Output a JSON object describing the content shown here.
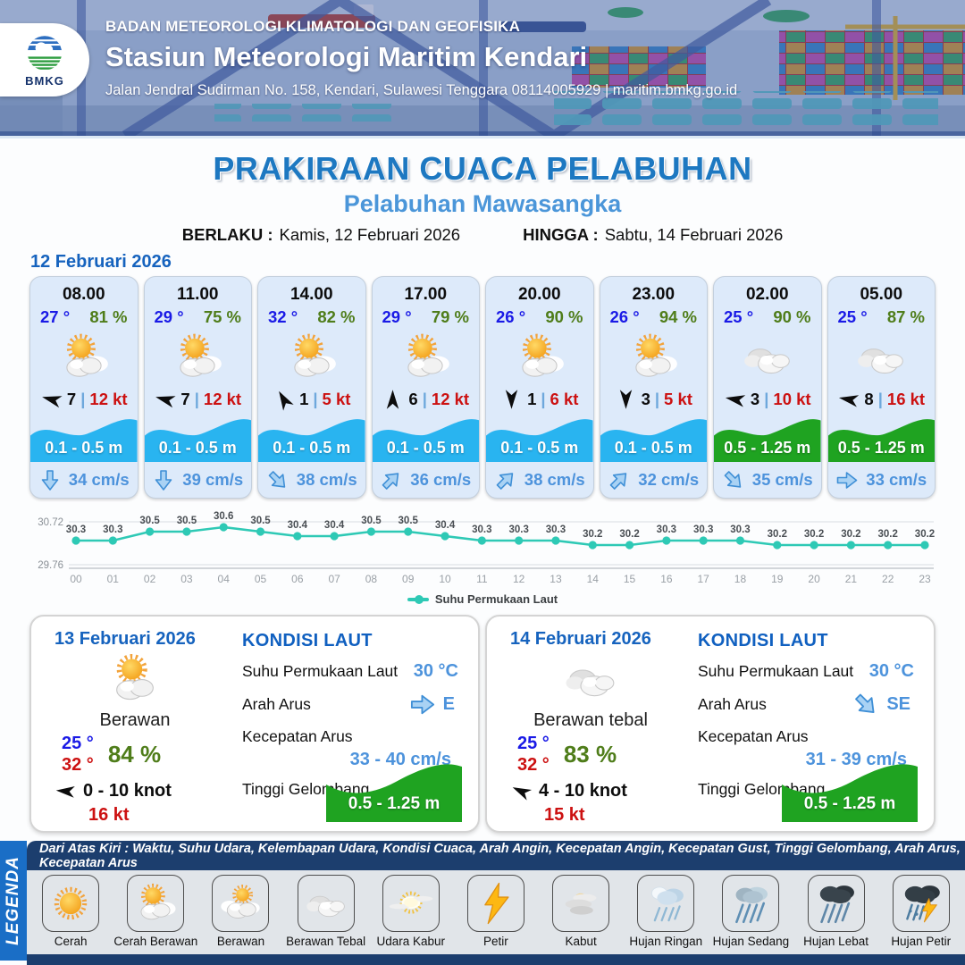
{
  "header": {
    "org": "BADAN METEOROLOGI KLIMATOLOGI DAN GEOFISIKA",
    "station": "Stasiun Meteorologi Maritim Kendari",
    "address": "Jalan Jendral Sudirman No. 158, Kendari, Sulawesi Tenggara  08114005929 | maritim.bmkg.go.id",
    "logo_text": "BMKG"
  },
  "title": {
    "main": "PRAKIRAAN CUACA PELABUHAN",
    "subtitle": "Pelabuhan Mawasangka",
    "berlaku_label": "BERLAKU :",
    "berlaku_value": "Kamis, 12 Februari 2026",
    "hingga_label": "HINGGA :",
    "hingga_value": "Sabtu, 14 Februari 2026"
  },
  "forecast_date": "12 Februari 2026",
  "misc": {
    "divider": "|"
  },
  "cards": [
    {
      "time": "08.00",
      "temp": "27 °",
      "humidity": "81 %",
      "icon": "cerah-berawan",
      "wind_speed": "7",
      "wind_gust": "12 kt",
      "wind_rot": 195,
      "wave": "0.1 - 0.5 m",
      "wave_color": "#29b4f0",
      "current": "34 cm/s",
      "current_rot": 90
    },
    {
      "time": "11.00",
      "temp": "29 °",
      "humidity": "75 %",
      "icon": "cerah-berawan",
      "wind_speed": "7",
      "wind_gust": "12 kt",
      "wind_rot": 195,
      "wave": "0.1 - 0.5 m",
      "wave_color": "#29b4f0",
      "current": "39 cm/s",
      "current_rot": 90
    },
    {
      "time": "14.00",
      "temp": "32 °",
      "humidity": "82 %",
      "icon": "cerah-berawan",
      "wind_speed": "1",
      "wind_gust": "5 kt",
      "wind_rot": 240,
      "wave": "0.1 - 0.5 m",
      "wave_color": "#29b4f0",
      "current": "38 cm/s",
      "current_rot": 45
    },
    {
      "time": "17.00",
      "temp": "29 °",
      "humidity": "79 %",
      "icon": "cerah-berawan",
      "wind_speed": "6",
      "wind_gust": "12 kt",
      "wind_rot": 270,
      "wave": "0.1 - 0.5 m",
      "wave_color": "#29b4f0",
      "current": "36 cm/s",
      "current_rot": 315
    },
    {
      "time": "20.00",
      "temp": "26 °",
      "humidity": "90 %",
      "icon": "cerah-berawan",
      "wind_speed": "1",
      "wind_gust": "6 kt",
      "wind_rot": 90,
      "wave": "0.1 - 0.5 m",
      "wave_color": "#29b4f0",
      "current": "38 cm/s",
      "current_rot": 315
    },
    {
      "time": "23.00",
      "temp": "26 °",
      "humidity": "94 %",
      "icon": "cerah-berawan",
      "wind_speed": "3",
      "wind_gust": "5 kt",
      "wind_rot": 90,
      "wave": "0.1 - 0.5 m",
      "wave_color": "#29b4f0",
      "current": "32 cm/s",
      "current_rot": 315
    },
    {
      "time": "02.00",
      "temp": "25 °",
      "humidity": "90 %",
      "icon": "berawan-tebal",
      "wind_speed": "3",
      "wind_gust": "10 kt",
      "wind_rot": 190,
      "wave": "0.5 - 1.25 m",
      "wave_color": "#1fa321",
      "current": "35 cm/s",
      "current_rot": 45
    },
    {
      "time": "05.00",
      "temp": "25 °",
      "humidity": "87 %",
      "icon": "berawan-tebal",
      "wind_speed": "8",
      "wind_gust": "16 kt",
      "wind_rot": 190,
      "wave": "0.5 - 1.25 m",
      "wave_color": "#1fa321",
      "current": "33 cm/s",
      "current_rot": 0
    }
  ],
  "chart_data": {
    "type": "line",
    "x": [
      "00",
      "01",
      "02",
      "03",
      "04",
      "05",
      "06",
      "07",
      "08",
      "09",
      "10",
      "11",
      "12",
      "13",
      "14",
      "15",
      "16",
      "17",
      "18",
      "19",
      "20",
      "21",
      "22",
      "23"
    ],
    "series": [
      {
        "name": "Suhu Permukaan Laut",
        "values": [
          30.3,
          30.3,
          30.5,
          30.5,
          30.6,
          30.5,
          30.4,
          30.4,
          30.5,
          30.5,
          30.4,
          30.3,
          30.3,
          30.3,
          30.2,
          30.2,
          30.3,
          30.3,
          30.3,
          30.2,
          30.2,
          30.2,
          30.2,
          30.2
        ]
      }
    ],
    "ylim": [
      29.76,
      30.72
    ],
    "yticks": [
      29.76,
      30.72
    ],
    "line_color": "#2ec9b5",
    "grid": true,
    "legend_position": "bottom"
  },
  "day_cards": [
    {
      "date": "13 Februari 2026",
      "icon": "cerah-berawan",
      "condition": "Berawan",
      "temp_min": "25 °",
      "temp_max": "32 °",
      "humidity": "84 %",
      "wind_range": "0 - 10 knot",
      "wind_rot": 185,
      "gust": "16 kt",
      "sea": {
        "title": "KONDISI LAUT",
        "sst_label": "Suhu Permukaan Laut",
        "sst_value": "30 °C",
        "arah_label": "Arah Arus",
        "arah_value": "E",
        "arah_rot": 0,
        "kec_label": "Kecepatan Arus",
        "kec_value": "33 - 40 cm/s",
        "gel_label": "Tinggi Gelombang",
        "gel_value": "0.5 - 1.25 m",
        "gel_color": "#1fa321"
      }
    },
    {
      "date": "14 Februari 2026",
      "icon": "berawan-tebal",
      "condition": "Berawan tebal",
      "temp_min": "25 °",
      "temp_max": "32 °",
      "humidity": "83 %",
      "wind_range": "4 - 10 knot",
      "wind_rot": 205,
      "gust": "15 kt",
      "sea": {
        "title": "KONDISI LAUT",
        "sst_label": "Suhu Permukaan Laut",
        "sst_value": "30 °C",
        "arah_label": "Arah Arus",
        "arah_value": "SE",
        "arah_rot": 45,
        "kec_label": "Kecepatan Arus",
        "kec_value": "31 - 39 cm/s",
        "gel_label": "Tinggi Gelombang",
        "gel_value": "0.5 - 1.25 m",
        "gel_color": "#1fa321"
      }
    }
  ],
  "legend": {
    "band_label": "LEGENDA",
    "header_note": "Dari Atas Kiri : Waktu, Suhu Udara, Kelembapan Udara, Kondisi Cuaca, Arah Angin, Kecepatan Angin, Kecepatan Gust, Tinggi Gelombang, Arah Arus, Kecepatan Arus",
    "items": [
      {
        "label": "Cerah",
        "icon": "cerah"
      },
      {
        "label": "Cerah Berawan",
        "icon": "cerah-berawan"
      },
      {
        "label": "Berawan",
        "icon": "berawan"
      },
      {
        "label": "Berawan Tebal",
        "icon": "berawan-tebal"
      },
      {
        "label": "Udara Kabur",
        "icon": "udara-kabur"
      },
      {
        "label": "Petir",
        "icon": "petir"
      },
      {
        "label": "Kabut",
        "icon": "kabut"
      },
      {
        "label": "Hujan Ringan",
        "icon": "hujan-ringan"
      },
      {
        "label": "Hujan Sedang",
        "icon": "hujan-sedang"
      },
      {
        "label": "Hujan Lebat",
        "icon": "hujan-lebat"
      },
      {
        "label": "Hujan Petir",
        "icon": "hujan-petir"
      }
    ]
  },
  "colors": {
    "title_blue": "#1d78c1",
    "subtitle_blue": "#4b96d9",
    "temp_blue": "#1a1ae6",
    "humidity_green": "#4f7d1a",
    "gust_red": "#cc1111",
    "wave_blue": "#29b4f0",
    "wave_green": "#1fa321",
    "current_blue": "#4d93dc",
    "legend_band_blue": "#1a6ec6",
    "legend_navy": "#1c3e6e"
  }
}
